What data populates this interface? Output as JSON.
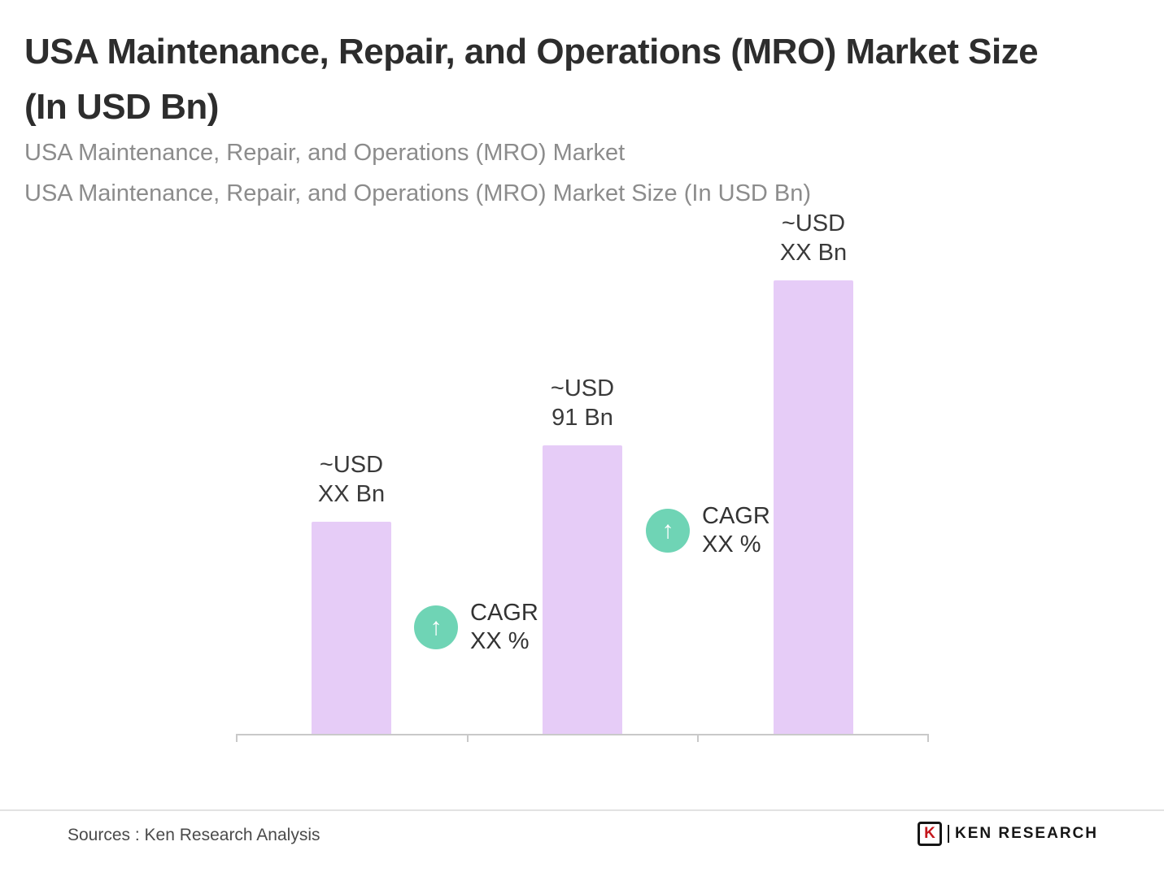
{
  "header": {
    "title_line1": "USA Maintenance, Repair, and Operations (MRO) Market Size",
    "title_line2": "(In USD Bn)",
    "subtitle1": "USA Maintenance, Repair, and Operations (MRO) Market",
    "subtitle2": "USA Maintenance, Repair, and Operations (MRO) Market Size (In USD Bn)"
  },
  "chart_data": {
    "type": "bar",
    "title": "USA Maintenance, Repair, and Operations (MRO) Market Size (In USD Bn)",
    "categories": [
      "",
      "",
      ""
    ],
    "bars": [
      {
        "label_line1": "~USD",
        "label_line2": "XX Bn",
        "value": 67
      },
      {
        "label_line1": "~USD",
        "label_line2": "91 Bn",
        "value": 91
      },
      {
        "label_line1": "~USD",
        "label_line2": "XX Bn",
        "value": 143
      }
    ],
    "value_unit": "USD Bn",
    "annotations": [
      {
        "icon": "up-arrow",
        "line1": "CAGR",
        "line2": "XX %"
      },
      {
        "icon": "up-arrow",
        "line1": "CAGR",
        "line2": "XX %"
      }
    ],
    "ylim": [
      0,
      150
    ],
    "grid": false,
    "legend": false,
    "bar_color": "#e6ccf7",
    "accent_color": "#6fd4b5"
  },
  "icons": {
    "up_arrow": "↑"
  },
  "footer": {
    "sources": "Sources : Ken Research Analysis",
    "logo_letter": "K",
    "logo_text": "KEN RESEARCH"
  },
  "colors": {
    "title": "#2d2d2d",
    "subtitle": "#8c8c8c",
    "bar": "#e6ccf7",
    "accent": "#6fd4b5",
    "axis": "#c9c9c9"
  }
}
